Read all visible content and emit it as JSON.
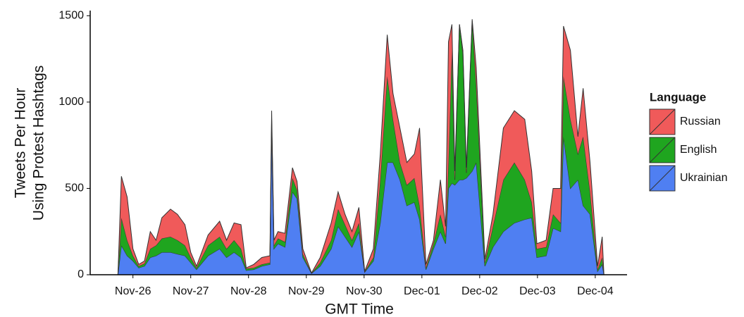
{
  "chart_data": {
    "type": "stacked-area",
    "xlabel": "GMT Time",
    "ylabel": [
      "Tweets Per Hour",
      "Using Protest Hashtags"
    ],
    "legend_title": "Language",
    "legend_position": "right",
    "xlim": [
      -0.74,
      8.55
    ],
    "xticks": [
      {
        "value": 0,
        "label": "Nov-26"
      },
      {
        "value": 1,
        "label": "Nov-27"
      },
      {
        "value": 2,
        "label": "Nov-28"
      },
      {
        "value": 3,
        "label": "Nov-29"
      },
      {
        "value": 4,
        "label": "Nov-30"
      },
      {
        "value": 5,
        "label": "Dec-01"
      },
      {
        "value": 6,
        "label": "Dec-02"
      },
      {
        "value": 7,
        "label": "Dec-03"
      },
      {
        "value": 8,
        "label": "Dec-04"
      }
    ],
    "ylim": [
      0,
      1530
    ],
    "yticks": [
      0,
      500,
      1000,
      1500
    ],
    "x": [
      -0.26,
      -0.2,
      -0.1,
      0,
      0.1,
      0.2,
      0.3,
      0.4,
      0.5,
      0.65,
      0.77,
      0.9,
      1.0,
      1.1,
      1.3,
      1.5,
      1.62,
      1.75,
      1.87,
      1.96,
      2.09,
      2.23,
      2.37,
      2.4,
      2.44,
      2.51,
      2.63,
      2.76,
      2.84,
      2.94,
      3.09,
      3.24,
      3.43,
      3.55,
      3.67,
      3.79,
      3.91,
      4.01,
      4.16,
      4.28,
      4.4,
      4.5,
      4.62,
      4.74,
      4.87,
      4.96,
      5.07,
      5.2,
      5.32,
      5.41,
      5.46,
      5.52,
      5.57,
      5.65,
      5.71,
      5.77,
      5.87,
      5.94,
      6.09,
      6.23,
      6.41,
      6.6,
      6.78,
      6.9,
      6.99,
      7.15,
      7.27,
      7.4,
      7.45,
      7.57,
      7.7,
      7.79,
      7.91,
      8.04,
      8.12,
      8.15
    ],
    "series": [
      {
        "name": "Ukrainian",
        "color": "#4f7ff2",
        "values": [
          0,
          170,
          110,
          80,
          40,
          50,
          100,
          110,
          130,
          130,
          120,
          110,
          70,
          30,
          110,
          150,
          100,
          130,
          100,
          25,
          30,
          50,
          60,
          850,
          150,
          180,
          160,
          480,
          440,
          100,
          8,
          50,
          150,
          280,
          220,
          160,
          250,
          15,
          80,
          300,
          650,
          650,
          550,
          400,
          420,
          320,
          30,
          150,
          250,
          180,
          500,
          530,
          520,
          550,
          550,
          560,
          600,
          650,
          50,
          160,
          250,
          300,
          320,
          330,
          100,
          110,
          270,
          250,
          800,
          500,
          550,
          400,
          350,
          20,
          60,
          0
        ]
      },
      {
        "name": "English",
        "color": "#1fa51f",
        "values": [
          0,
          160,
          90,
          30,
          10,
          15,
          50,
          60,
          80,
          90,
          80,
          60,
          30,
          10,
          60,
          70,
          50,
          70,
          50,
          10,
          10,
          10,
          10,
          50,
          20,
          30,
          30,
          80,
          50,
          20,
          1,
          20,
          50,
          100,
          70,
          40,
          50,
          3,
          20,
          250,
          500,
          250,
          100,
          120,
          140,
          80,
          10,
          30,
          100,
          40,
          150,
          770,
          30,
          900,
          730,
          30,
          870,
          450,
          20,
          120,
          300,
          350,
          230,
          90,
          50,
          50,
          80,
          50,
          350,
          400,
          150,
          400,
          130,
          10,
          40,
          0
        ]
      },
      {
        "name": "Russian",
        "color": "#f05a5a",
        "values": [
          0,
          240,
          250,
          40,
          10,
          15,
          100,
          30,
          120,
          160,
          150,
          120,
          30,
          10,
          60,
          90,
          50,
          100,
          140,
          5,
          20,
          40,
          40,
          50,
          30,
          40,
          50,
          60,
          50,
          30,
          1,
          30,
          100,
          100,
          60,
          50,
          90,
          2,
          50,
          150,
          240,
          150,
          200,
          130,
          140,
          450,
          20,
          20,
          200,
          60,
          700,
          150,
          50,
          0,
          20,
          30,
          10,
          100,
          20,
          70,
          300,
          300,
          350,
          180,
          30,
          40,
          150,
          200,
          290,
          400,
          100,
          280,
          170,
          20,
          120,
          0
        ]
      }
    ]
  }
}
